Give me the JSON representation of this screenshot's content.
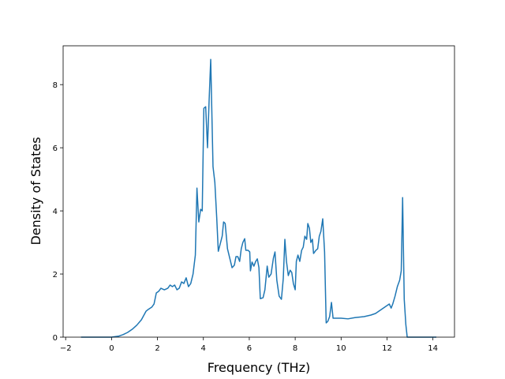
{
  "chart_data": {
    "type": "line",
    "xlabel": "Frequency (THz)",
    "ylabel": "Density of States",
    "xlim": [
      -2.11,
      14.94
    ],
    "ylim": [
      0,
      9.23
    ],
    "xticks": [
      {
        "value": -2,
        "label": "−2"
      },
      0,
      2,
      4,
      6,
      8,
      10,
      12,
      14
    ],
    "yticks": [
      0,
      2,
      4,
      6,
      8
    ],
    "x": [
      -1.33,
      0,
      0.3,
      0.5,
      0.7,
      0.9,
      1.1,
      1.3,
      1.5,
      1.6,
      1.75,
      1.85,
      1.95,
      2.05,
      2.15,
      2.3,
      2.45,
      2.55,
      2.65,
      2.75,
      2.85,
      2.95,
      3.05,
      3.15,
      3.25,
      3.35,
      3.45,
      3.55,
      3.65,
      3.72,
      3.8,
      3.88,
      3.95,
      4.02,
      4.1,
      4.18,
      4.25,
      4.32,
      4.42,
      4.5,
      4.58,
      4.65,
      4.75,
      4.82,
      4.88,
      4.95,
      5.05,
      5.15,
      5.25,
      5.35,
      5.42,
      5.5,
      5.58,
      5.65,
      5.72,
      5.8,
      5.85,
      5.95,
      6.02,
      6.05,
      6.12,
      6.2,
      6.28,
      6.35,
      6.42,
      6.48,
      6.6,
      6.68,
      6.78,
      6.85,
      6.95,
      7.05,
      7.12,
      7.2,
      7.3,
      7.4,
      7.48,
      7.55,
      7.62,
      7.7,
      7.78,
      7.85,
      7.92,
      8.0,
      8.05,
      8.12,
      8.2,
      8.28,
      8.35,
      8.42,
      8.5,
      8.55,
      8.62,
      8.68,
      8.75,
      8.8,
      8.9,
      8.98,
      9.05,
      9.12,
      9.2,
      9.28,
      9.35,
      9.42,
      9.5,
      9.58,
      9.65,
      10.0,
      10.3,
      10.6,
      11.0,
      11.3,
      11.5,
      11.7,
      11.9,
      12.0,
      12.1,
      12.18,
      12.25,
      12.35,
      12.45,
      12.55,
      12.62,
      12.68,
      12.75,
      12.82,
      12.88,
      13.2,
      14.15
    ],
    "series": [
      {
        "color": "#1f77b4",
        "values": [
          0,
          0,
          0.03,
          0.08,
          0.15,
          0.25,
          0.38,
          0.55,
          0.82,
          0.88,
          0.95,
          1.05,
          1.4,
          1.45,
          1.55,
          1.5,
          1.55,
          1.65,
          1.6,
          1.65,
          1.5,
          1.55,
          1.75,
          1.7,
          1.88,
          1.6,
          1.7,
          2.0,
          2.6,
          4.72,
          3.65,
          4.05,
          4.0,
          7.25,
          7.3,
          6.0,
          7.5,
          8.8,
          5.4,
          4.9,
          3.8,
          2.72,
          3.0,
          3.2,
          3.65,
          3.6,
          2.8,
          2.5,
          2.2,
          2.28,
          2.55,
          2.55,
          2.4,
          2.8,
          3.0,
          3.12,
          2.75,
          2.75,
          2.7,
          2.1,
          2.38,
          2.25,
          2.4,
          2.48,
          2.2,
          1.22,
          1.25,
          1.5,
          2.25,
          1.9,
          2.0,
          2.5,
          2.7,
          1.8,
          1.3,
          1.2,
          1.85,
          3.1,
          2.4,
          1.95,
          2.12,
          2.05,
          1.7,
          1.5,
          2.4,
          2.6,
          2.4,
          2.75,
          2.85,
          3.2,
          3.1,
          3.6,
          3.45,
          3.0,
          3.1,
          2.65,
          2.75,
          2.8,
          3.2,
          3.35,
          3.75,
          2.7,
          0.45,
          0.5,
          0.65,
          1.1,
          0.6,
          0.6,
          0.58,
          0.62,
          0.65,
          0.7,
          0.75,
          0.85,
          0.95,
          1.0,
          1.05,
          0.92,
          1.05,
          1.3,
          1.6,
          1.8,
          2.1,
          4.42,
          1.2,
          0.4,
          0,
          0,
          0
        ]
      }
    ]
  }
}
